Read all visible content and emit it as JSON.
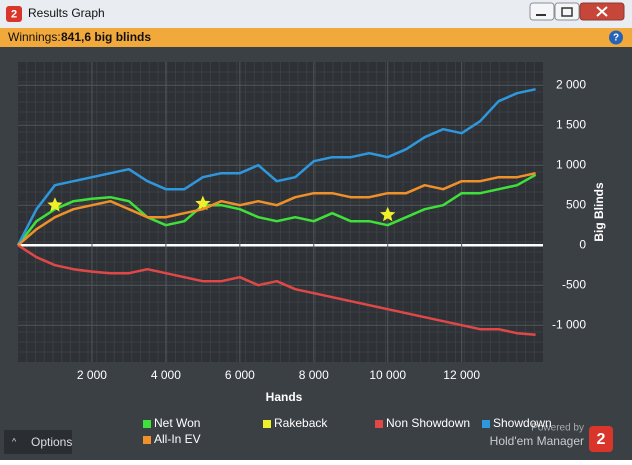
{
  "window": {
    "title": "Results Graph"
  },
  "header": {
    "label": "Winnings:",
    "value": "841,6 big blinds"
  },
  "footer": {
    "options": "Options",
    "powered_by": "Powered by",
    "brand": "Hold'em Manager",
    "brand_number": "2"
  },
  "chart_data": {
    "type": "line",
    "x_label": "Hands",
    "y_label": "Big Blinds",
    "x": [
      0,
      500,
      1000,
      1500,
      2000,
      2500,
      3000,
      3500,
      4000,
      4500,
      5000,
      5500,
      6000,
      6500,
      7000,
      7500,
      8000,
      8500,
      9000,
      9500,
      10000,
      10500,
      11000,
      11500,
      12000,
      12500,
      13000,
      13500,
      14000
    ],
    "series": [
      {
        "name": "Net Won",
        "color": "#3fe03a",
        "values": [
          0,
          300,
          450,
          550,
          580,
          600,
          550,
          350,
          250,
          300,
          500,
          500,
          450,
          350,
          300,
          350,
          300,
          400,
          300,
          300,
          250,
          350,
          450,
          500,
          650,
          650,
          700,
          750,
          880
        ]
      },
      {
        "name": "Rakeback",
        "color": "#f0f02a",
        "marker": "star",
        "x": [
          1000,
          5000,
          10000
        ],
        "values": [
          500,
          520,
          380
        ]
      },
      {
        "name": "Non Showdown",
        "color": "#e04848",
        "values": [
          0,
          -150,
          -250,
          -300,
          -330,
          -350,
          -350,
          -300,
          -350,
          -400,
          -450,
          -450,
          -400,
          -500,
          -450,
          -550,
          -600,
          -650,
          -700,
          -750,
          -800,
          -850,
          -900,
          -950,
          -1000,
          -1050,
          -1050,
          -1100,
          -1120
        ]
      },
      {
        "name": "Showdown",
        "color": "#2f97dd",
        "values": [
          0,
          450,
          750,
          800,
          850,
          900,
          950,
          800,
          700,
          700,
          850,
          900,
          900,
          1000,
          800,
          850,
          1050,
          1100,
          1100,
          1150,
          1100,
          1200,
          1350,
          1450,
          1400,
          1550,
          1800,
          1900,
          1950
        ]
      },
      {
        "name": "All-In EV",
        "color": "#f0902a",
        "values": [
          0,
          200,
          350,
          450,
          500,
          550,
          450,
          350,
          350,
          400,
          450,
          550,
          500,
          550,
          500,
          600,
          650,
          650,
          600,
          600,
          650,
          650,
          750,
          700,
          800,
          800,
          850,
          850,
          900
        ]
      }
    ],
    "xlim": [
      0,
      14200
    ],
    "ylim": [
      -1460,
      2290
    ],
    "xticks": [
      {
        "value": 2000,
        "label": "2 000"
      },
      {
        "value": 4000,
        "label": "4 000"
      },
      {
        "value": 6000,
        "label": "6 000"
      },
      {
        "value": 8000,
        "label": "8 000"
      },
      {
        "value": 10000,
        "label": "10 000"
      },
      {
        "value": 12000,
        "label": "12 000"
      }
    ],
    "yticks": [
      {
        "value": 2000,
        "label": "2 000"
      },
      {
        "value": 1500,
        "label": "1 500"
      },
      {
        "value": 1000,
        "label": "1 000"
      },
      500,
      0,
      -500,
      {
        "value": -1000,
        "label": "-1 000"
      }
    ],
    "grid": true
  }
}
